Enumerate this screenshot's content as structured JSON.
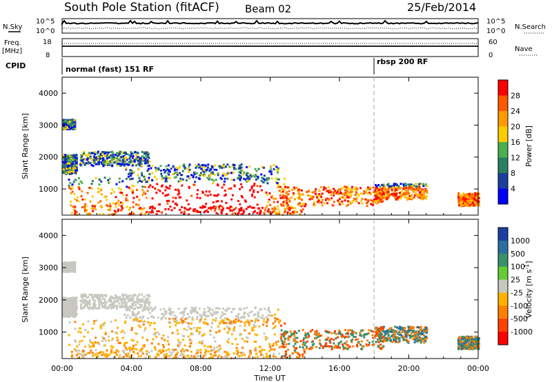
{
  "header": {
    "title": "South Pole Station (fitACF)",
    "beam": "Beam 02",
    "date": "25/Feb/2014"
  },
  "panels": {
    "nsky": {
      "label": "N.Sky",
      "left_ticks": [
        "10^5",
        "10^0"
      ],
      "right_ticks": [
        "10^5",
        "10^0"
      ],
      "right_label": "N.Search"
    },
    "freq": {
      "label_line1": "Freq.",
      "label_line2": "[MHz]",
      "left_ticks": [
        "18",
        "8"
      ],
      "right_ticks": [
        "60",
        "0"
      ],
      "right_label": "Nave"
    },
    "cpid": {
      "label": "CPID",
      "modes": [
        "normal (fast) 151 RF",
        "rbsp 200 RF"
      ],
      "mode_change_hour": 18.0
    }
  },
  "chart_data": [
    {
      "type": "heatmap",
      "name": "power",
      "ylabel": "Slant Range [km]",
      "x_ticks": [
        "00:00",
        "04:00",
        "08:00",
        "12:00",
        "16:00",
        "20:00",
        "00:00"
      ],
      "xlim_hours": [
        0,
        24
      ],
      "y_ticks": [
        1000,
        2000,
        3000,
        4000
      ],
      "ylim_km": [
        180,
        4500
      ],
      "colorbar": {
        "label": "Power [dB]",
        "ticks": [
          "28",
          "24",
          "20",
          "16",
          "12",
          "8",
          "4"
        ],
        "colors": [
          "#ff0000",
          "#ff5a00",
          "#ff9a00",
          "#ffcc00",
          "#4caf50",
          "#2a7f62",
          "#1a3fa0",
          "#0000ff"
        ]
      }
    },
    {
      "type": "heatmap",
      "name": "velocity",
      "ylabel": "Slant Range [km]",
      "xlabel": "Time UT",
      "x_ticks": [
        "00:00",
        "04:00",
        "08:00",
        "12:00",
        "16:00",
        "20:00",
        "00:00"
      ],
      "xlim_hours": [
        0,
        24
      ],
      "y_ticks": [
        1000,
        2000,
        3000,
        4000
      ],
      "ylim_km": [
        180,
        4500
      ],
      "colorbar": {
        "label": "Velocity [m s^-1]",
        "ticks": [
          "1000",
          "500",
          "100",
          "25",
          "-25",
          "-100",
          "-500",
          "-1000"
        ],
        "colors": [
          "#1a3fa0",
          "#2a6fa0",
          "#3b8f6a",
          "#66cc33",
          "#c8c8c0",
          "#ffb300",
          "#ff8000",
          "#ff4000",
          "#ff0000"
        ]
      }
    }
  ]
}
